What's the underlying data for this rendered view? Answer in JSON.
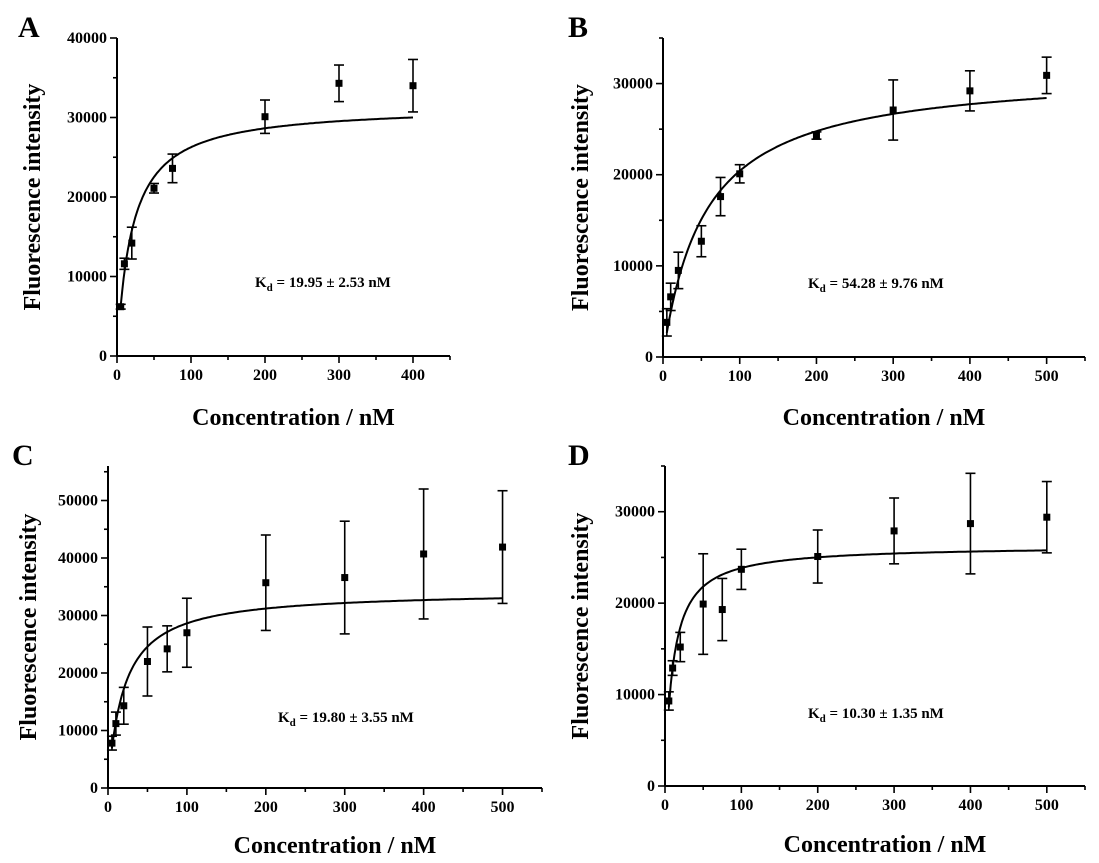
{
  "chart_data": [
    {
      "panel": "A",
      "type": "scatter",
      "xlabel": "Concentration / nM",
      "ylabel": "Fluorescence intensity",
      "xlim": [
        0,
        450
      ],
      "ylim": [
        0,
        40000
      ],
      "xticks": [
        0,
        100,
        200,
        300,
        400
      ],
      "yticks": [
        0,
        10000,
        20000,
        30000,
        40000
      ],
      "x": [
        5,
        10,
        20,
        50,
        75,
        200,
        300,
        400
      ],
      "y": [
        6200,
        11600,
        14200,
        21100,
        23600,
        30100,
        34300,
        34000
      ],
      "error": [
        300,
        700,
        2000,
        600,
        1800,
        2100,
        2300,
        3300
      ],
      "fit": {
        "bmax": 31500,
        "kd": 19.95
      },
      "kd_label": {
        "k": "K",
        "sub": "d",
        "text": " = 19.95 ± 2.53 nM"
      }
    },
    {
      "panel": "B",
      "type": "scatter",
      "xlabel": "Concentration / nM",
      "ylabel": "Fluorescence intensity",
      "xlim": [
        0,
        550
      ],
      "ylim": [
        0,
        35000
      ],
      "xticks": [
        0,
        100,
        200,
        300,
        400,
        500
      ],
      "yticks": [
        0,
        10000,
        20000,
        30000
      ],
      "x": [
        5,
        10,
        20,
        50,
        75,
        100,
        200,
        300,
        400,
        500
      ],
      "y": [
        3800,
        6600,
        9500,
        12700,
        17600,
        20100,
        24300,
        27100,
        29200,
        30900
      ],
      "error": [
        1500,
        1500,
        2000,
        1700,
        2100,
        1000,
        400,
        3300,
        2200,
        2000
      ],
      "fit": {
        "bmax": 31500,
        "kd": 54.28
      },
      "kd_label": {
        "k": "K",
        "sub": "d",
        "text": " = 54.28 ± 9.76 nM"
      }
    },
    {
      "panel": "C",
      "type": "scatter",
      "xlabel": "Concentration / nM",
      "ylabel": "Fluorescence intensity",
      "xlim": [
        0,
        550
      ],
      "ylim": [
        0,
        56000
      ],
      "xticks": [
        0,
        100,
        200,
        300,
        400,
        500
      ],
      "yticks": [
        0,
        10000,
        20000,
        30000,
        40000,
        50000
      ],
      "x": [
        5,
        10,
        20,
        50,
        75,
        100,
        200,
        300,
        400,
        500
      ],
      "y": [
        7800,
        11200,
        14300,
        22000,
        24200,
        27000,
        35700,
        36600,
        40700,
        41900
      ],
      "error": [
        1200,
        2000,
        3200,
        6000,
        4000,
        6000,
        8300,
        9800,
        11300,
        9800
      ],
      "fit": {
        "bmax": 34300,
        "kd": 19.8
      },
      "kd_label": {
        "k": "K",
        "sub": "d",
        "text": " = 19.80 ± 3.55 nM"
      }
    },
    {
      "panel": "D",
      "type": "scatter",
      "xlabel": "Concentration / nM",
      "ylabel": "Fluorescence intensity",
      "xlim": [
        0,
        550
      ],
      "ylim": [
        0,
        35000
      ],
      "xticks": [
        0,
        100,
        200,
        300,
        400,
        500
      ],
      "yticks": [
        0,
        10000,
        20000,
        30000
      ],
      "x": [
        5,
        10,
        20,
        50,
        75,
        100,
        200,
        300,
        400,
        500
      ],
      "y": [
        9300,
        12900,
        15200,
        19900,
        19300,
        23700,
        25100,
        27900,
        28700,
        29400
      ],
      "error": [
        1000,
        800,
        1600,
        5500,
        3400,
        2200,
        2900,
        3600,
        5500,
        3900
      ],
      "fit": {
        "bmax": 26300,
        "kd": 10.3
      },
      "kd_label": {
        "k": "K",
        "sub": "d",
        "text": " = 10.30 ± 1.35 nM"
      }
    }
  ]
}
